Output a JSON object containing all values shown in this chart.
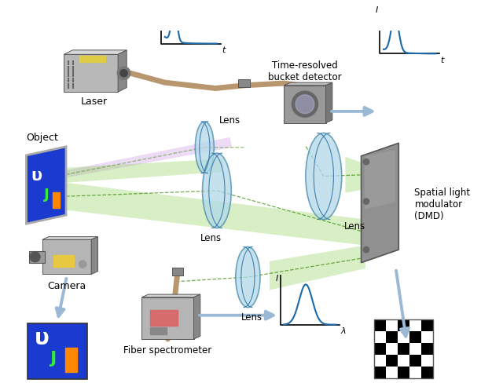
{
  "bg_color": "#ffffff",
  "labels": {
    "laser": "Laser",
    "object": "Object",
    "lens1": "Lens",
    "lens2": "Lens",
    "lens3": "Lens",
    "lens4": "Lens",
    "camera": "Camera",
    "fiber_spec": "Fiber spectrometer",
    "time_resolved": "Time-resolved\nbucket detector",
    "slm": "Spatial light\nmodulator\n(DMD)"
  },
  "colors": {
    "gray_device": "#aaaaaa",
    "gray_dark": "#888888",
    "gray_light": "#cccccc",
    "blue": "#1a6aab",
    "green_beam": "#80cc40",
    "purple_beam": "#c080e0",
    "lens_blue": "#b0d8e8",
    "arrow_blue": "#9bb8d4",
    "tan_fiber": "#b8966e",
    "object_bg": "#1a3ad0",
    "text_color": "#000000"
  }
}
